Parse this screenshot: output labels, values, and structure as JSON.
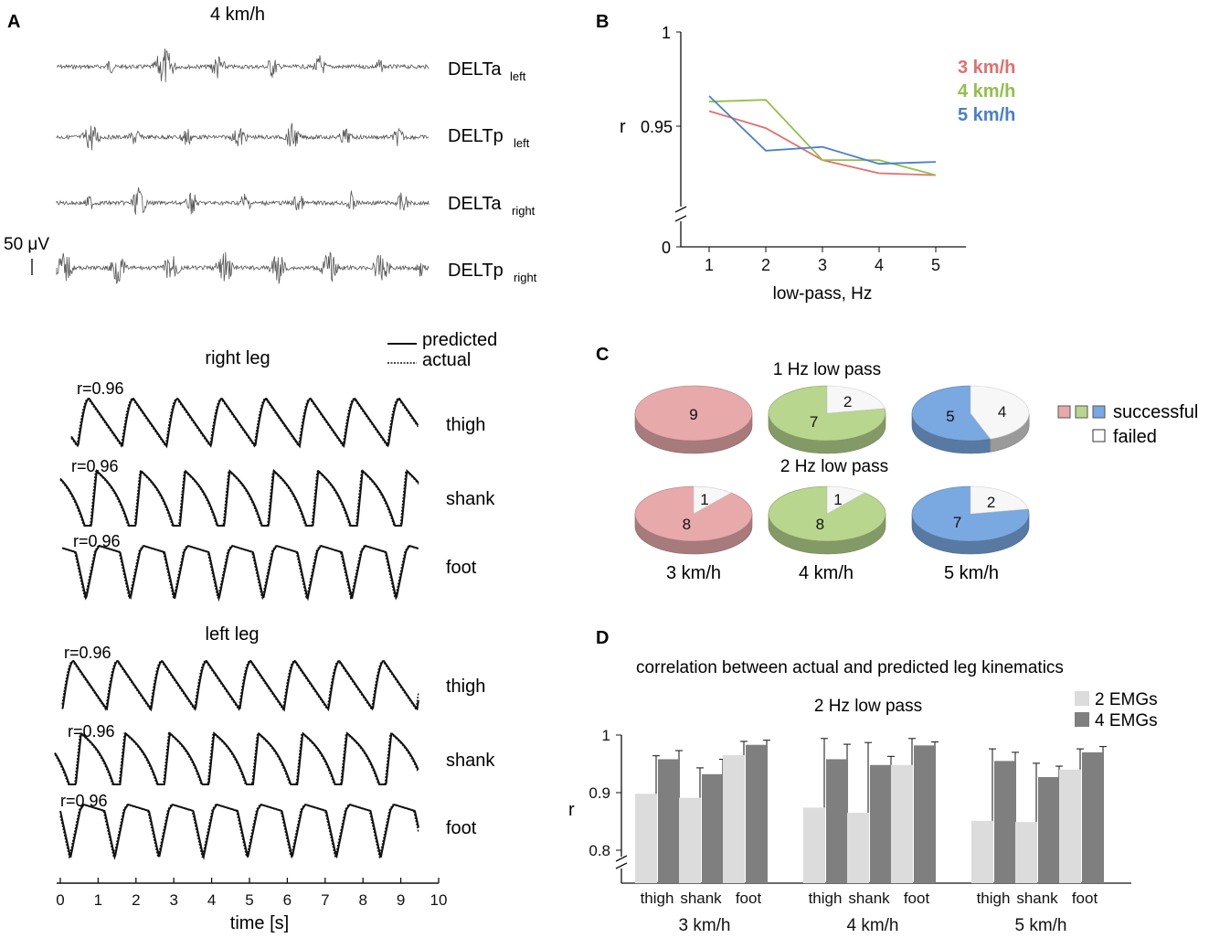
{
  "panels": {
    "a": "A",
    "b": "B",
    "c": "C",
    "d": "D"
  },
  "emg": {
    "title": "4 km/h",
    "scale_label": "50 μV",
    "channels": [
      {
        "label": "DELTa",
        "sub": "left"
      },
      {
        "label": "DELTp",
        "sub": "left"
      },
      {
        "label": "DELTa",
        "sub": "right"
      },
      {
        "label": "DELTp",
        "sub": "right"
      }
    ]
  },
  "legend_traces": {
    "predicted": "predicted",
    "actual": "actual"
  },
  "legs": [
    {
      "title": "right leg",
      "rows": [
        {
          "r": "r=0.96",
          "segment": "thigh"
        },
        {
          "r": "r=0.96",
          "segment": "shank"
        },
        {
          "r": "r=0.96",
          "segment": "foot"
        }
      ]
    },
    {
      "title": "left leg",
      "rows": [
        {
          "r": "r=0.96",
          "segment": "thigh"
        },
        {
          "r": "r=0.96",
          "segment": "shank"
        },
        {
          "r": "r=0.96",
          "segment": "foot"
        }
      ]
    }
  ],
  "time_axis": {
    "label": "time [s]",
    "ticks": [
      "0",
      "1",
      "2",
      "3",
      "4",
      "5",
      "6",
      "7",
      "8",
      "9",
      "10"
    ]
  },
  "chart_data": [
    {
      "id": "B",
      "type": "line",
      "title": "",
      "xlabel": "low-pass, Hz",
      "ylabel": "r",
      "x": [
        1,
        2,
        3,
        4,
        5
      ],
      "x_ticks": [
        "1",
        "2",
        "3",
        "4",
        "5"
      ],
      "y_ticks": [
        "0",
        "0.95",
        "1"
      ],
      "ylim": [
        0.915,
        1.0
      ],
      "axis_break": true,
      "series": [
        {
          "name": "3 km/h",
          "color": "#e07070",
          "values": [
            0.958,
            0.949,
            0.932,
            0.925,
            0.924
          ]
        },
        {
          "name": "4 km/h",
          "color": "#92c04a",
          "values": [
            0.963,
            0.964,
            0.932,
            0.932,
            0.924
          ]
        },
        {
          "name": "5 km/h",
          "color": "#4a7fc9",
          "values": [
            0.966,
            0.937,
            0.939,
            0.93,
            0.931
          ]
        }
      ]
    },
    {
      "id": "C",
      "type": "pie",
      "legend": {
        "successful": "successful",
        "failed": "failed"
      },
      "colors": {
        "3 km/h": "#e8a9ab",
        "4 km/h": "#b8d68e",
        "5 km/h": "#7aa8e0",
        "failed": "#f7f7f7"
      },
      "rows": [
        {
          "title": "1 Hz low pass",
          "pies": [
            {
              "speed": "3 km/h",
              "successful": 9,
              "failed": 0
            },
            {
              "speed": "4 km/h",
              "successful": 7,
              "failed": 2
            },
            {
              "speed": "5 km/h",
              "successful": 5,
              "failed": 4
            }
          ]
        },
        {
          "title": "2 Hz low pass",
          "pies": [
            {
              "speed": "3 km/h",
              "successful": 8,
              "failed": 1
            },
            {
              "speed": "4 km/h",
              "successful": 8,
              "failed": 1
            },
            {
              "speed": "5 km/h",
              "successful": 7,
              "failed": 2
            }
          ]
        }
      ],
      "speed_labels": [
        "3 km/h",
        "4 km/h",
        "5 km/h"
      ]
    },
    {
      "id": "D",
      "type": "bar",
      "title": "correlation between actual and predicted leg kinematics",
      "subtitle": "2 Hz low pass",
      "ylabel": "r",
      "y_ticks": [
        "0.8",
        "0.9",
        "1"
      ],
      "ylim": [
        0.77,
        1.0
      ],
      "axis_break": true,
      "groups": [
        "3 km/h",
        "4 km/h",
        "5 km/h"
      ],
      "categories": [
        "thigh",
        "shank",
        "foot"
      ],
      "series": [
        {
          "name": "2 EMGs",
          "color": "#dcdcdc",
          "values": [
            [
              0.898,
              0.891,
              0.965
            ],
            [
              0.874,
              0.865,
              0.948
            ],
            [
              0.851,
              0.849,
              0.94
            ]
          ],
          "errors": [
            [
              0.066,
              0.052,
              0.024
            ],
            [
              0.12,
              0.122,
              0.046
            ],
            [
              0.125,
              0.102,
              0.036
            ]
          ]
        },
        {
          "name": "4 EMGs",
          "color": "#7f7f7f",
          "values": [
            [
              0.958,
              0.932,
              0.983
            ],
            [
              0.958,
              0.948,
              0.982
            ],
            [
              0.955,
              0.927,
              0.97
            ]
          ],
          "errors": [
            [
              0.015,
              0.026,
              0.008
            ],
            [
              0.026,
              0.015,
              0.006
            ],
            [
              0.015,
              0.019,
              0.01
            ]
          ]
        }
      ]
    }
  ]
}
